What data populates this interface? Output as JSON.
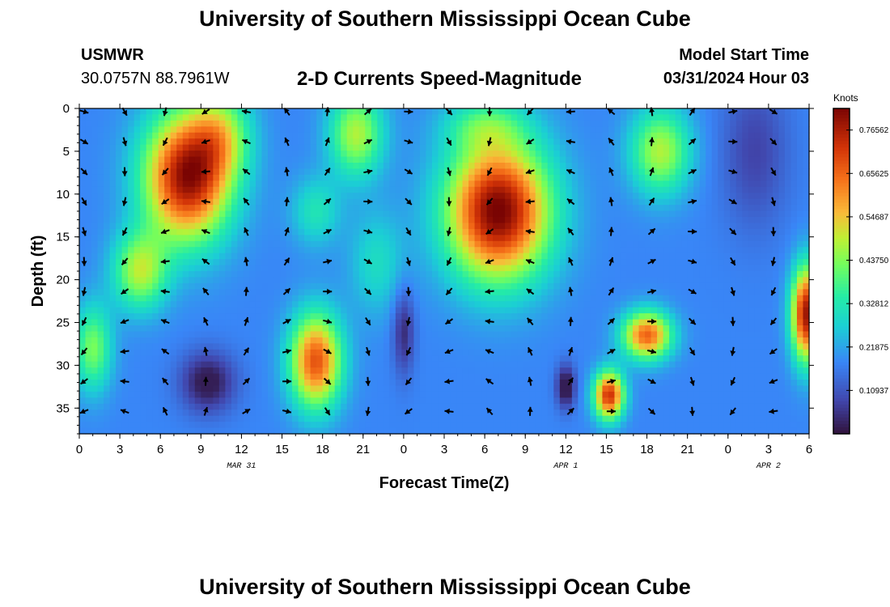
{
  "page": {
    "title_top": "University of Southern Mississippi Ocean Cube",
    "title_bottom": "University of Southern Mississippi Ocean Cube"
  },
  "header": {
    "station": "USMWR",
    "coords": "30.0757N  88.7961W",
    "plot_title": "2-D Currents Speed-Magnitude",
    "model_label": "Model Start Time",
    "model_time": "03/31/2024 Hour 03"
  },
  "chart_data": {
    "type": "heatmap",
    "title": "2-D Currents Speed-Magnitude",
    "xlabel": "Forecast Time(Z)",
    "ylabel": "Depth (ft)",
    "x_range_hours": [
      0,
      54
    ],
    "x_ticks": [
      {
        "hour": 0,
        "label": "0"
      },
      {
        "hour": 3,
        "label": "3"
      },
      {
        "hour": 6,
        "label": "6"
      },
      {
        "hour": 9,
        "label": "9"
      },
      {
        "hour": 12,
        "label": "12"
      },
      {
        "hour": 15,
        "label": "15"
      },
      {
        "hour": 18,
        "label": "18"
      },
      {
        "hour": 21,
        "label": "21"
      },
      {
        "hour": 24,
        "label": "0"
      },
      {
        "hour": 27,
        "label": "3"
      },
      {
        "hour": 30,
        "label": "6"
      },
      {
        "hour": 33,
        "label": "9"
      },
      {
        "hour": 36,
        "label": "12"
      },
      {
        "hour": 39,
        "label": "15"
      },
      {
        "hour": 42,
        "label": "18"
      },
      {
        "hour": 45,
        "label": "21"
      },
      {
        "hour": 48,
        "label": "0"
      },
      {
        "hour": 51,
        "label": "3"
      },
      {
        "hour": 54,
        "label": "6"
      }
    ],
    "date_labels": [
      {
        "hour": 12,
        "label": "MAR 31"
      },
      {
        "hour": 36,
        "label": "APR 1"
      },
      {
        "hour": 51,
        "label": "APR 2"
      }
    ],
    "y_range_ft": [
      0,
      38
    ],
    "y_ticks": [
      0,
      5,
      10,
      15,
      20,
      25,
      30,
      35
    ],
    "colorbar": {
      "label": "Knots",
      "min": 0,
      "max": 0.82,
      "tick_values": [
        0.10937,
        0.21875,
        0.32812,
        0.4375,
        0.54687,
        0.65625,
        0.76562
      ],
      "tick_labels": [
        "0.10937",
        "0.21875",
        "0.32812",
        "0.43750",
        "0.54687",
        "0.65625",
        "0.76562"
      ]
    },
    "speed_blobs": [
      {
        "hour": 8.0,
        "depth": 8,
        "sh": 3.2,
        "sd": 7.5,
        "amp": 0.62
      },
      {
        "hour": 4.5,
        "depth": 19,
        "sh": 2.0,
        "sd": 4.5,
        "amp": 0.3
      },
      {
        "hour": 10.5,
        "depth": 3,
        "sh": 2.2,
        "sd": 5,
        "amp": 0.22
      },
      {
        "hour": 31.0,
        "depth": 12,
        "sh": 3.8,
        "sd": 8,
        "amp": 0.65
      },
      {
        "hour": 30.0,
        "depth": 2,
        "sh": 3,
        "sd": 3,
        "amp": 0.15
      },
      {
        "hour": 17.5,
        "depth": 29.5,
        "sh": 1.9,
        "sd": 5.5,
        "amp": 0.5
      },
      {
        "hour": 20.5,
        "depth": 3,
        "sh": 2.0,
        "sd": 5,
        "amp": 0.3
      },
      {
        "hour": 17.5,
        "depth": 12,
        "sh": 1.8,
        "sd": 4,
        "amp": 0.14
      },
      {
        "hour": 42.0,
        "depth": 26.5,
        "sh": 1.8,
        "sd": 2.8,
        "amp": 0.48
      },
      {
        "hour": 39.2,
        "depth": 33.5,
        "sh": 1.1,
        "sd": 2.8,
        "amp": 0.55
      },
      {
        "hour": 43.0,
        "depth": 5,
        "sh": 2.2,
        "sd": 5,
        "amp": 0.3
      },
      {
        "hour": 53.8,
        "depth": 24,
        "sh": 1.1,
        "sd": 5.5,
        "amp": 0.6
      },
      {
        "hour": 1.0,
        "depth": 28,
        "sh": 1.4,
        "sd": 5,
        "amp": 0.25
      },
      {
        "hour": 22.0,
        "depth": 18,
        "sh": 2,
        "sd": 6,
        "amp": 0.12
      }
    ],
    "calm_zones": [
      {
        "hour": 9.5,
        "depth": 32,
        "sh": 2.0,
        "sd": 3.5,
        "amp": 0.18
      },
      {
        "hour": 24.0,
        "depth": 26,
        "sh": 0.8,
        "sd": 5,
        "amp": 0.14
      },
      {
        "hour": 50.0,
        "depth": 5,
        "sh": 2.5,
        "sd": 9,
        "amp": 0.1
      },
      {
        "hour": 36.0,
        "depth": 32.5,
        "sh": 0.7,
        "sd": 2.5,
        "amp": 0.2
      }
    ],
    "arrow_rows_depth_ft": [
      0,
      3.5,
      7,
      10.5,
      14,
      17.5,
      21,
      24.5,
      28,
      31.5,
      35
    ],
    "arrow_columns_hour": [
      0,
      3,
      6,
      9,
      12,
      15,
      18,
      21,
      24,
      27,
      30,
      33,
      36,
      39,
      42,
      45,
      48,
      51
    ]
  }
}
